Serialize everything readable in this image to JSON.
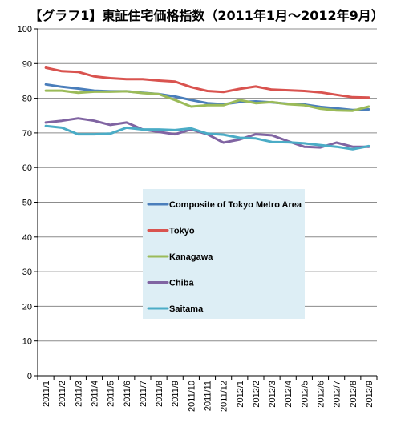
{
  "chart_data": {
    "type": "line",
    "title": "【グラフ1】東証住宅価格指数（2011年1月～2012年9月）",
    "xlabel": "",
    "ylabel": "",
    "ylim": [
      0,
      100
    ],
    "yticks": [
      0,
      10,
      20,
      30,
      40,
      50,
      60,
      70,
      80,
      90,
      100
    ],
    "grid": "horizontal",
    "legend_position": "center",
    "categories": [
      "2011/1",
      "2011/2",
      "2011/3",
      "2011/4",
      "2011/5",
      "2011/6",
      "2011/7",
      "2011/8",
      "2011/9",
      "2011/10",
      "2011/11",
      "2011/12",
      "2012/1",
      "2012/2",
      "2012/3",
      "2012/4",
      "2012/5",
      "2012/6",
      "2012/7",
      "2012/8",
      "2012/9"
    ],
    "series": [
      {
        "name": "Composite of Tokyo Metro Area",
        "color": "#4a7ebb",
        "values": [
          84.0,
          83.3,
          82.8,
          82.2,
          82.0,
          82.0,
          81.6,
          81.2,
          80.5,
          79.5,
          78.6,
          78.3,
          78.9,
          79.1,
          78.8,
          78.4,
          78.2,
          77.5,
          77.1,
          76.6,
          76.8
        ]
      },
      {
        "name": "Tokyo",
        "color": "#d9534f",
        "values": [
          88.8,
          87.8,
          87.6,
          86.3,
          85.8,
          85.5,
          85.5,
          85.1,
          84.8,
          83.2,
          82.1,
          81.8,
          82.7,
          83.4,
          82.5,
          82.3,
          82.1,
          81.7,
          81.0,
          80.3,
          80.2
        ]
      },
      {
        "name": "Kanagawa",
        "color": "#9bbb59",
        "values": [
          82.2,
          82.2,
          81.6,
          81.9,
          81.9,
          82.0,
          81.5,
          81.2,
          79.5,
          77.6,
          78.0,
          78.0,
          79.5,
          78.6,
          78.9,
          78.3,
          78.0,
          77.0,
          76.5,
          76.4,
          77.6
        ]
      },
      {
        "name": "Chiba",
        "color": "#8064a2",
        "values": [
          73.0,
          73.5,
          74.2,
          73.5,
          72.3,
          73.0,
          71.0,
          70.3,
          69.6,
          71.0,
          69.6,
          67.2,
          68.1,
          69.6,
          69.3,
          67.6,
          66.0,
          65.8,
          67.2,
          66.0,
          66.0
        ]
      },
      {
        "name": "Saitama",
        "color": "#4bacc6",
        "values": [
          72.0,
          71.5,
          69.6,
          69.6,
          69.8,
          71.5,
          71.0,
          71.0,
          70.8,
          71.3,
          69.8,
          69.5,
          68.6,
          68.4,
          67.4,
          67.3,
          67.0,
          66.5,
          66.0,
          65.3,
          66.2
        ]
      }
    ]
  }
}
